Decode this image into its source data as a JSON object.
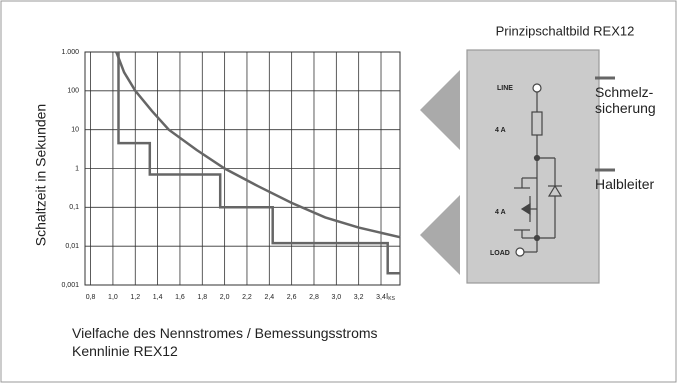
{
  "chart_data": {
    "type": "line",
    "y_label": "Schaltzeit in Sekunden",
    "x_unit": "I",
    "x_unit_sub": "KS",
    "x_label": "Vielfache des Nennstromes / Bemessungsstroms",
    "caption": "Kennlinie REX12",
    "log_y": true,
    "grid": true,
    "xlim": [
      0.75,
      3.57
    ],
    "xticks": [
      {
        "value": 0.8,
        "label": "0,8"
      },
      {
        "value": 1.0,
        "label": "1,0"
      },
      {
        "value": 1.2,
        "label": "1,2"
      },
      {
        "value": 1.4,
        "label": "1,4"
      },
      {
        "value": 1.6,
        "label": "1,6"
      },
      {
        "value": 1.8,
        "label": "1,8"
      },
      {
        "value": 2.0,
        "label": "2,0"
      },
      {
        "value": 2.2,
        "label": "2,2"
      },
      {
        "value": 2.4,
        "label": "2,4"
      },
      {
        "value": 2.6,
        "label": "2,6"
      },
      {
        "value": 2.8,
        "label": "2,8"
      },
      {
        "value": 3.0,
        "label": "3,0"
      },
      {
        "value": 3.2,
        "label": "3,2"
      },
      {
        "value": 3.4,
        "label": "3,4"
      }
    ],
    "ylim": [
      0.001,
      1000
    ],
    "yticks": [
      {
        "value": 0.001,
        "label": "0,001"
      },
      {
        "value": 0.01,
        "label": "0,01"
      },
      {
        "value": 0.1,
        "label": "0,1"
      },
      1,
      10,
      100,
      {
        "value": 1000,
        "label": "1.000"
      }
    ],
    "series": [
      {
        "name": "Schmelz-\nsicherung",
        "color": "#666666",
        "x": [
          1.03,
          1.1,
          1.2,
          1.35,
          1.5,
          1.75,
          2.0,
          2.3,
          2.6,
          2.9,
          3.2,
          3.57
        ],
        "y": [
          1000,
          300,
          100,
          30,
          10,
          3,
          1,
          0.35,
          0.13,
          0.055,
          0.03,
          0.017
        ]
      },
      {
        "name": "Halbleiter",
        "color": "#666666",
        "x": [
          1.05,
          1.05,
          1.33,
          1.33,
          1.96,
          1.96,
          2.43,
          2.43,
          3.46,
          3.46,
          3.57
        ],
        "y": [
          1000,
          4.5,
          4.5,
          0.7,
          0.7,
          0.1,
          0.1,
          0.012,
          0.012,
          0.002,
          0.002
        ]
      }
    ]
  },
  "diagram": {
    "title": "Prinzipschaltbild REX12",
    "line": "LINE",
    "load": "LOAD",
    "fuse_rating": "4 A",
    "semi_rating": "4 A"
  }
}
